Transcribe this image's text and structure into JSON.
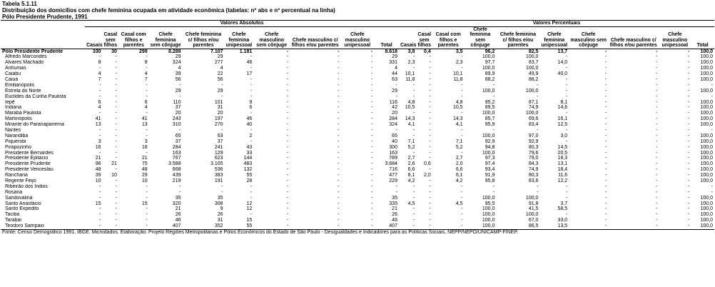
{
  "header": {
    "table_id": "Tabela 5.1.11",
    "title": "Distribuição dos domicílios com chefe feminina ocupada em atividade econômica (tabelas: nº abs e nº percentual na linha)",
    "subtitle": "Pólo Presidente Prudente, 1991"
  },
  "groups": {
    "abs": "Valores Absolutos",
    "pct": "Valores Percentuais"
  },
  "columns": {
    "abs": [
      "Casais",
      "Casal sem filhos",
      "Casal com filhos e parentes",
      "Chefe feminina sem cônjuge",
      "Chefe feminina c/ filhos e/ou parentes",
      "Chefe feminina unipessoal",
      "Chefe masculino sem cônjuge",
      "Chefe masculino c/ filhos e/ou parentes",
      "Chefe masculino unipessoal",
      "Total"
    ],
    "pct": [
      "Casais",
      "Casal sem filhos",
      "Casal com filhos e parentes",
      "Chefe feminina sem cônjuge",
      "Chefe feminina c/ filhos e/ou parentes",
      "Chefe feminina unipessoal",
      "Chefe masculino sem cônjuge",
      "Chefe masculino c/ filhos e/ou parentes",
      "Chefe masculino unipessoal",
      "Total"
    ]
  },
  "rows": [
    {
      "name": "Pólo Presidente Prudente",
      "total": true,
      "abs": [
        "330",
        "30",
        "299",
        "8.288",
        "7.107",
        "1.181",
        "-",
        "-",
        "-",
        "8.618"
      ],
      "pct": [
        "3,8",
        "0,4",
        "3,5",
        "96,2",
        "82,5",
        "13,7",
        "-",
        "-",
        "-",
        "100,0"
      ]
    },
    {
      "name": "Alfredo Marcondes",
      "abs": [
        "-",
        "-",
        "-",
        "29",
        "29",
        "-",
        "-",
        "-",
        "-",
        "29"
      ],
      "pct": [
        "-",
        "-",
        "-",
        "100,0",
        "100,0",
        "-",
        "-",
        "-",
        "-",
        "100,0"
      ]
    },
    {
      "name": "Álvares Machado",
      "abs": [
        "8",
        "-",
        "8",
        "324",
        "277",
        "46",
        "-",
        "-",
        "-",
        "331"
      ],
      "pct": [
        "2,3",
        "-",
        "2,3",
        "97,7",
        "83,7",
        "14,0",
        "-",
        "-",
        "-",
        "100,0"
      ]
    },
    {
      "name": "Anhumas",
      "abs": [
        "-",
        "-",
        "-",
        "4",
        "4",
        "-",
        "-",
        "-",
        "-",
        "4"
      ],
      "pct": [
        "-",
        "-",
        "-",
        "100,0",
        "100,0",
        "-",
        "-",
        "-",
        "-",
        "100,0"
      ]
    },
    {
      "name": "Caiabu",
      "abs": [
        "4",
        "-",
        "4",
        "39",
        "22",
        "17",
        "-",
        "-",
        "-",
        "44"
      ],
      "pct": [
        "10,1",
        "-",
        "10,1",
        "89,9",
        "49,9",
        "40,0",
        "-",
        "-",
        "-",
        "100,0"
      ]
    },
    {
      "name": "Caiuá",
      "abs": [
        "7",
        "-",
        "7",
        "56",
        "56",
        "-",
        "-",
        "-",
        "-",
        "63"
      ],
      "pct": [
        "11,8",
        "-",
        "11,8",
        "88,2",
        "88,2",
        "-",
        "-",
        "-",
        "-",
        "100,0"
      ]
    },
    {
      "name": "Emilianópolis",
      "abs": [
        "-",
        "-",
        "-",
        "-",
        "-",
        "-",
        "-",
        "-",
        "-",
        "-"
      ],
      "pct": [
        "-",
        "-",
        "-",
        "-",
        "-",
        "-",
        "-",
        "-",
        "-",
        "-"
      ]
    },
    {
      "name": "Estrela do Norte",
      "abs": [
        "-",
        "-",
        "-",
        "29",
        "29",
        "-",
        "-",
        "-",
        "-",
        "29"
      ],
      "pct": [
        "-",
        "-",
        "-",
        "100,0",
        "100,0",
        "-",
        "-",
        "-",
        "-",
        "100,0"
      ]
    },
    {
      "name": "Euclides da Cunha Paulista",
      "abs": [
        "-",
        "-",
        "-",
        "-",
        "-",
        "-",
        "-",
        "-",
        "-",
        "-"
      ],
      "pct": [
        "-",
        "-",
        "-",
        "-",
        "-",
        "-",
        "-",
        "-",
        "-",
        "-"
      ]
    },
    {
      "name": "Iepê",
      "abs": [
        "6",
        "-",
        "6",
        "110",
        "101",
        "9",
        "-",
        "-",
        "-",
        "116"
      ],
      "pct": [
        "4,8",
        "-",
        "4,8",
        "95,2",
        "87,1",
        "8,1",
        "-",
        "-",
        "-",
        "100,0"
      ]
    },
    {
      "name": "Indiana",
      "abs": [
        "4",
        "-",
        "4",
        "37",
        "31",
        "6",
        "-",
        "-",
        "-",
        "42"
      ],
      "pct": [
        "10,5",
        "-",
        "10,5",
        "89,5",
        "74,9",
        "14,6",
        "-",
        "-",
        "-",
        "100,0"
      ]
    },
    {
      "name": "Marabá Paulista",
      "abs": [
        "-",
        "-",
        "-",
        "20",
        "20",
        "-",
        "-",
        "-",
        "-",
        "20"
      ],
      "pct": [
        "-",
        "-",
        "-",
        "100,0",
        "100,0",
        "-",
        "-",
        "-",
        "-",
        "100,0"
      ]
    },
    {
      "name": "Martinópolis",
      "abs": [
        "41",
        "-",
        "41",
        "243",
        "197",
        "46",
        "-",
        "-",
        "-",
        "284"
      ],
      "pct": [
        "14,3",
        "-",
        "14,3",
        "85,7",
        "69,6",
        "16,1",
        "-",
        "-",
        "-",
        "100,0"
      ]
    },
    {
      "name": "Mirante do Paranapanema",
      "abs": [
        "13",
        "-",
        "13",
        "310",
        "270",
        "40",
        "-",
        "-",
        "-",
        "324"
      ],
      "pct": [
        "4,1",
        "-",
        "4,1",
        "95,9",
        "83,4",
        "12,5",
        "-",
        "-",
        "-",
        "100,0"
      ]
    },
    {
      "name": "Nantes",
      "abs": [
        "-",
        "-",
        "-",
        "-",
        "-",
        "-",
        "-",
        "-",
        "-",
        "-"
      ],
      "pct": [
        "-",
        "-",
        "-",
        "-",
        "-",
        "-",
        "-",
        "-",
        "-",
        "-"
      ]
    },
    {
      "name": "Narandiba",
      "abs": [
        "-",
        "-",
        "-",
        "65",
        "63",
        "2",
        "-",
        "-",
        "-",
        "65"
      ],
      "pct": [
        "-",
        "-",
        "-",
        "100,0",
        "97,0",
        "3,0",
        "-",
        "-",
        "-",
        "100,0"
      ]
    },
    {
      "name": "Piquerobi",
      "abs": [
        "3",
        "-",
        "3",
        "37",
        "37",
        "-",
        "-",
        "-",
        "-",
        "40"
      ],
      "pct": [
        "7,1",
        "-",
        "7,1",
        "92,9",
        "92,9",
        "-",
        "-",
        "-",
        "-",
        "100,0"
      ]
    },
    {
      "name": "Pirapozinho",
      "abs": [
        "16",
        "-",
        "16",
        "284",
        "241",
        "43",
        "-",
        "-",
        "-",
        "300"
      ],
      "pct": [
        "5,2",
        "-",
        "5,2",
        "94,8",
        "80,3",
        "14,5",
        "-",
        "-",
        "-",
        "100,0"
      ]
    },
    {
      "name": "Presidente Bernardes",
      "abs": [
        "-",
        "-",
        "-",
        "163",
        "129",
        "33",
        "-",
        "-",
        "-",
        "163"
      ],
      "pct": [
        "-",
        "-",
        "-",
        "100,0",
        "79,6",
        "20,5",
        "-",
        "-",
        "-",
        "100,0"
      ]
    },
    {
      "name": "Presidente Epitácio",
      "abs": [
        "21",
        "-",
        "21",
        "767",
        "623",
        "144",
        "-",
        "-",
        "-",
        "789"
      ],
      "pct": [
        "2,7",
        "-",
        "2,7",
        "97,3",
        "79,0",
        "18,3",
        "-",
        "-",
        "-",
        "100,0"
      ]
    },
    {
      "name": "Presidente Prudente",
      "abs": [
        "96",
        "21",
        "75",
        "3.588",
        "3.105",
        "483",
        "-",
        "-",
        "-",
        "3.684"
      ],
      "pct": [
        "2,6",
        "0,6",
        "2,0",
        "97,4",
        "84,3",
        "13,1",
        "-",
        "-",
        "-",
        "100,0"
      ]
    },
    {
      "name": "Presidente Venceslau",
      "abs": [
        "48",
        "-",
        "48",
        "668",
        "536",
        "132",
        "-",
        "-",
        "-",
        "716"
      ],
      "pct": [
        "6,6",
        "-",
        "6,6",
        "93,4",
        "74,9",
        "18,4",
        "-",
        "-",
        "-",
        "100,0"
      ]
    },
    {
      "name": "Rancharia",
      "abs": [
        "39",
        "10",
        "29",
        "439",
        "383",
        "55",
        "-",
        "-",
        "-",
        "477"
      ],
      "pct": [
        "8,1",
        "2,0",
        "6,1",
        "91,9",
        "80,3",
        "11,6",
        "-",
        "-",
        "-",
        "100,0"
      ]
    },
    {
      "name": "Regente Feijó",
      "abs": [
        "10",
        "-",
        "10",
        "219",
        "191",
        "28",
        "-",
        "-",
        "-",
        "229"
      ],
      "pct": [
        "4,2",
        "-",
        "4,2",
        "95,8",
        "83,6",
        "12,2",
        "-",
        "-",
        "-",
        "100,0"
      ]
    },
    {
      "name": "Ribeirão dos Índios",
      "abs": [
        "-",
        "-",
        "-",
        "-",
        "-",
        "-",
        "-",
        "-",
        "-",
        "-"
      ],
      "pct": [
        "-",
        "-",
        "-",
        "-",
        "-",
        "-",
        "-",
        "-",
        "-",
        "-"
      ]
    },
    {
      "name": "Rosana",
      "abs": [
        "-",
        "-",
        "-",
        "-",
        "-",
        "-",
        "-",
        "-",
        "-",
        "-"
      ],
      "pct": [
        "-",
        "-",
        "-",
        "-",
        "-",
        "-",
        "-",
        "-",
        "-",
        "-"
      ]
    },
    {
      "name": "Sandovalina",
      "abs": [
        "-",
        "-",
        "-",
        "35",
        "35",
        "-",
        "-",
        "-",
        "-",
        "35"
      ],
      "pct": [
        "-",
        "-",
        "-",
        "100,0",
        "100,0",
        "-",
        "-",
        "-",
        "-",
        "100,0"
      ]
    },
    {
      "name": "Santo Anastácio",
      "abs": [
        "15",
        "-",
        "15",
        "320",
        "308",
        "12",
        "-",
        "-",
        "-",
        "335"
      ],
      "pct": [
        "4,5",
        "-",
        "4,5",
        "95,5",
        "91,8",
        "3,7",
        "-",
        "-",
        "-",
        "100,0"
      ]
    },
    {
      "name": "Santo Expedito",
      "abs": [
        "-",
        "-",
        "-",
        "21",
        "9",
        "12",
        "-",
        "-",
        "-",
        "21"
      ],
      "pct": [
        "-",
        "-",
        "-",
        "100,0",
        "41,5",
        "58,5",
        "-",
        "-",
        "-",
        "100,0"
      ]
    },
    {
      "name": "Taciba",
      "abs": [
        "-",
        "-",
        "-",
        "26",
        "26",
        "-",
        "-",
        "-",
        "-",
        "26"
      ],
      "pct": [
        "-",
        "-",
        "-",
        "100,0",
        "100,0",
        "-",
        "-",
        "-",
        "-",
        "100,0"
      ]
    },
    {
      "name": "Tarabai",
      "abs": [
        "-",
        "-",
        "-",
        "46",
        "31",
        "15",
        "-",
        "-",
        "-",
        "46"
      ],
      "pct": [
        "-",
        "-",
        "-",
        "100,0",
        "67,0",
        "33,0",
        "-",
        "-",
        "-",
        "100,0"
      ]
    },
    {
      "name": "Teodoro Sampaio",
      "abs": [
        "-",
        "-",
        "-",
        "407",
        "352",
        "55",
        "-",
        "-",
        "-",
        "407"
      ],
      "pct": [
        "-",
        "-",
        "-",
        "100,0",
        "86,5",
        "13,5",
        "-",
        "-",
        "-",
        "100,0"
      ]
    }
  ],
  "footer": "Fonte: Censo Demográfico 1991, IBGE. Microdados. Elaboração: Projeto Regiões Metropolitanas e Pólos Econômicos do Estado de São Paulo - Desigualdades e Indicadores para as Políticas Sociais, NEPP/NEPO/UNICAMP-FINEP."
}
